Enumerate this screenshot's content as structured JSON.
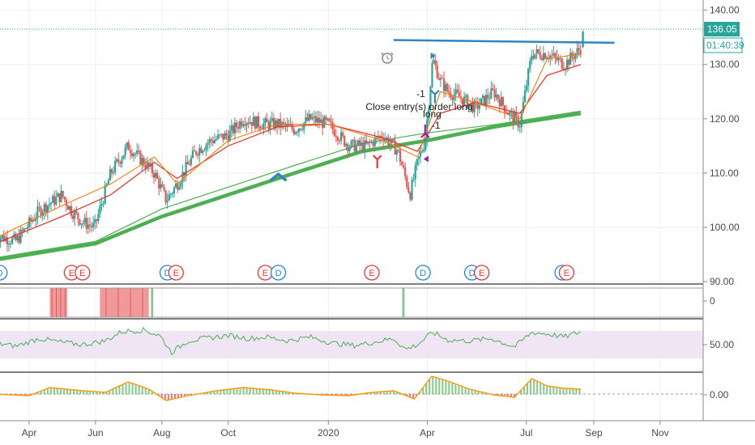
{
  "colors": {
    "up": "#26a69a",
    "down": "#ef5350",
    "ema_fast": "#f57c00",
    "ema_mid": "#e53935",
    "sma_long": "#4caf50",
    "resistance": "#2e86c1",
    "price_badge": "#26a69a",
    "rsi": "#4caf50",
    "rsi_band": "#e1bee7",
    "macd_line": "#ff9800"
  },
  "chart_data": [
    {
      "type": "candlestick",
      "panel": "price",
      "x_axis": {
        "start": "2019-03-01",
        "end": "2020-11-30",
        "ticks": [
          "Apr",
          "Jun",
          "Aug",
          "Oct",
          "2020",
          "Apr",
          "Jul",
          "Sep",
          "Nov"
        ]
      },
      "y_axis": {
        "ylim": [
          89,
          141
        ],
        "ticks": [
          "140.00",
          "130.00",
          "120.00",
          "110.00",
          "100.00",
          "90.00"
        ]
      },
      "last_price": "136.05",
      "countdown": "01:40:39",
      "close_series": {
        "dates": [
          "2019-03-01",
          "2019-03-20",
          "2019-04-10",
          "2019-05-01",
          "2019-05-10",
          "2019-05-20",
          "2019-05-31",
          "2019-06-15",
          "2019-07-01",
          "2019-07-15",
          "2019-07-25",
          "2019-08-05",
          "2019-08-15",
          "2019-09-01",
          "2019-09-15",
          "2019-10-01",
          "2019-10-15",
          "2019-11-01",
          "2019-11-15",
          "2019-12-01",
          "2019-12-15",
          "2020-01-01",
          "2020-01-20",
          "2020-02-05",
          "2020-02-20",
          "2020-03-05",
          "2020-03-12",
          "2020-03-16",
          "2020-03-23",
          "2020-03-30",
          "2020-04-06",
          "2020-04-13",
          "2020-04-20",
          "2020-05-01",
          "2020-05-15",
          "2020-06-01",
          "2020-06-15",
          "2020-06-25",
          "2020-07-06",
          "2020-07-20",
          "2020-08-05",
          "2020-08-20"
        ],
        "values": [
          98.5,
          97.5,
          103,
          106,
          103,
          101,
          100,
          110,
          115,
          112,
          110,
          105,
          108,
          114,
          116,
          117,
          120,
          119,
          119,
          118,
          120,
          119,
          115,
          115,
          117,
          114,
          109,
          106,
          112,
          116,
          131,
          127,
          125,
          124,
          122,
          125,
          121,
          119,
          132,
          132,
          130,
          133
        ]
      },
      "series": [
        {
          "name": "",
          "style": "ema_fast",
          "x": [
            "2019-03-01",
            "2019-05-01",
            "2019-06-15",
            "2019-07-25",
            "2019-08-15",
            "2019-10-01",
            "2019-11-15",
            "2020-01-01",
            "2020-02-20",
            "2020-03-23",
            "2020-04-13",
            "2020-05-15",
            "2020-06-25",
            "2020-07-20",
            "2020-08-20"
          ],
          "values": [
            98,
            104,
            108,
            113,
            108,
            116,
            119,
            119,
            116,
            113,
            125,
            123,
            120,
            131,
            132
          ]
        },
        {
          "name": "",
          "style": "ema_mid",
          "x": [
            "2019-03-01",
            "2019-05-01",
            "2019-06-15",
            "2019-07-25",
            "2019-08-15",
            "2019-10-01",
            "2019-11-15",
            "2020-01-01",
            "2020-02-20",
            "2020-03-23",
            "2020-04-13",
            "2020-05-15",
            "2020-06-25",
            "2020-07-20",
            "2020-08-20"
          ],
          "values": [
            97,
            102,
            106,
            112,
            109,
            115,
            118.5,
            119,
            116.5,
            114,
            121,
            123,
            121,
            128,
            130
          ]
        },
        {
          "name": "",
          "style": "sma_long",
          "x": [
            "2019-03-01",
            "2019-06-01",
            "2019-08-01",
            "2019-10-01",
            "2019-12-01",
            "2020-02-01",
            "2020-04-01",
            "2020-06-01",
            "2020-08-20"
          ],
          "values": [
            94,
            97,
            102,
            106,
            110,
            114,
            116,
            118.5,
            121
          ]
        }
      ],
      "resistance": {
        "x": [
          "2020-03-01",
          "2020-09-20"
        ],
        "values": [
          134.5,
          134.0
        ]
      },
      "annotations": [
        {
          "text": "Close entry(s) order long",
          "x": "2020-03-20",
          "y": 121.6
        },
        {
          "text": "long",
          "x": "2020-03-31",
          "y": 120.3
        },
        {
          "text": "-1",
          "x": "2020-03-25",
          "y": 124.0
        },
        {
          "text": "-1",
          "x": "2020-04-08",
          "y": 118.2
        }
      ],
      "event_markers": [
        {
          "label": "D",
          "date": "2019-03-05"
        },
        {
          "label": "E",
          "date": "2019-05-10"
        },
        {
          "label": "E",
          "date": "2019-05-20"
        },
        {
          "label": "D",
          "date": "2019-08-06"
        },
        {
          "label": "E",
          "date": "2019-08-14"
        },
        {
          "label": "E",
          "date": "2019-11-04"
        },
        {
          "label": "D",
          "date": "2019-11-16"
        },
        {
          "label": "E",
          "date": "2020-02-10"
        },
        {
          "label": "D",
          "date": "2020-03-28"
        },
        {
          "label": "D",
          "date": "2020-05-12"
        },
        {
          "label": "E",
          "date": "2020-05-21"
        },
        {
          "label": "D",
          "date": "2020-08-03"
        },
        {
          "label": "E",
          "date": "2020-08-07"
        }
      ]
    },
    {
      "type": "bar",
      "panel": "signal",
      "y_axis": {
        "ticks": [
          "0"
        ]
      },
      "bands": [
        {
          "start": "2019-04-20",
          "end": "2019-05-06",
          "color": "#ef9a9a"
        },
        {
          "start": "2019-06-05",
          "end": "2019-07-20",
          "color": "#ef9a9a"
        },
        {
          "start": "2019-07-22",
          "end": "2019-07-24",
          "color": "#81c784"
        },
        {
          "start": "2020-03-09",
          "end": "2020-03-11",
          "color": "#81c784"
        }
      ]
    },
    {
      "type": "line",
      "panel": "rsi",
      "y_axis": {
        "ticks": [
          "50.00"
        ]
      },
      "x": [
        "2019-03-01",
        "2019-03-20",
        "2019-04-10",
        "2019-05-01",
        "2019-05-20",
        "2019-06-10",
        "2019-06-25",
        "2019-07-15",
        "2019-07-30",
        "2019-08-10",
        "2019-08-25",
        "2019-09-15",
        "2019-10-01",
        "2019-10-20",
        "2019-11-05",
        "2019-11-25",
        "2019-12-15",
        "2020-01-05",
        "2020-01-25",
        "2020-02-15",
        "2020-03-01",
        "2020-03-12",
        "2020-03-23",
        "2020-04-06",
        "2020-04-20",
        "2020-05-10",
        "2020-05-30",
        "2020-06-20",
        "2020-07-06",
        "2020-07-20",
        "2020-08-05",
        "2020-08-20"
      ],
      "values": [
        52,
        48,
        58,
        53,
        50,
        55,
        67,
        69,
        62,
        40,
        55,
        59,
        62,
        58,
        60,
        55,
        60,
        52,
        49,
        54,
        58,
        44,
        50,
        66,
        56,
        55,
        58,
        47,
        66,
        64,
        60,
        67
      ]
    },
    {
      "type": "area",
      "panel": "macd",
      "y_axis": {
        "ticks": [
          "0.00"
        ]
      },
      "x": [
        "2019-03-01",
        "2019-04-01",
        "2019-04-20",
        "2019-05-20",
        "2019-06-10",
        "2019-07-01",
        "2019-07-20",
        "2019-08-05",
        "2019-08-25",
        "2019-09-20",
        "2019-10-15",
        "2019-11-10",
        "2019-12-01",
        "2019-12-25",
        "2020-01-20",
        "2020-02-10",
        "2020-03-01",
        "2020-03-20",
        "2020-04-05",
        "2020-04-20",
        "2020-05-10",
        "2020-06-01",
        "2020-06-20",
        "2020-07-06",
        "2020-07-20",
        "2020-08-05",
        "2020-08-20"
      ],
      "values": [
        0,
        -0.2,
        0.8,
        0.4,
        0.2,
        1.5,
        0.6,
        -0.8,
        -0.2,
        0.4,
        0.8,
        0.5,
        0.1,
        -0.1,
        -0.2,
        0.2,
        0.4,
        -0.6,
        2.2,
        1.6,
        0.6,
        -0.1,
        -0.4,
        1.9,
        1.0,
        0.7,
        0.6
      ]
    }
  ]
}
